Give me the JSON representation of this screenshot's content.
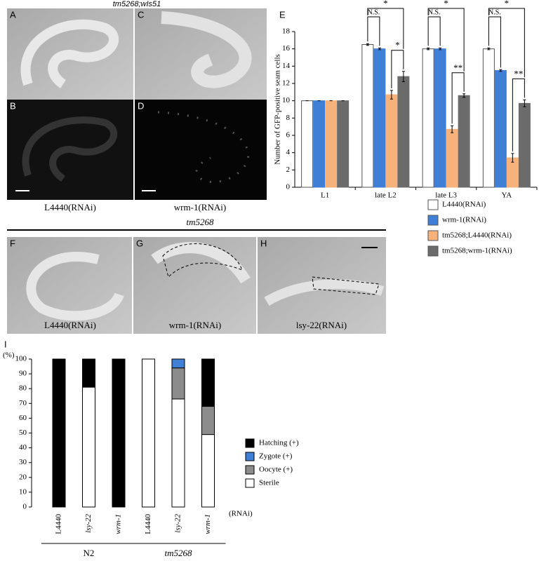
{
  "panel_labels": [
    "A",
    "B",
    "C",
    "D",
    "E",
    "F",
    "G",
    "H",
    "I"
  ],
  "headers": [
    "tm5268;wIs51",
    "tm5268"
  ],
  "captions": [
    "L4440(RNAi)",
    "wrm-1(RNAi)",
    "L4440(RNAi)",
    "wrm-1(RNAi)",
    "lsy-22(RNAi)"
  ],
  "chart_data": [
    {
      "type": "bar",
      "y_label": "Number of GFP-positive seam cells",
      "categories": [
        "L1",
        "late L2",
        "late L3",
        "YA"
      ],
      "series": [
        {
          "name": "L4440(RNAi)",
          "color": "#ffffff",
          "values": [
            10,
            16.5,
            16,
            16
          ],
          "errors": [
            0,
            0.1,
            0.1,
            0.1
          ]
        },
        {
          "name": "wrm-1(RNAi)",
          "color": "#3f7fd6",
          "values": [
            10,
            16,
            16,
            13.5
          ],
          "errors": [
            0,
            0.1,
            0.1,
            0.1
          ]
        },
        {
          "name": "tm5268;L4440(RNAi)",
          "color": "#f7b27c",
          "values": [
            10,
            10.7,
            6.7,
            3.4
          ],
          "errors": [
            0,
            0.5,
            0.4,
            0.5
          ]
        },
        {
          "name": "tm5268;wrm-1(RNAi)",
          "color": "#6b6b6b",
          "values": [
            10,
            12.8,
            10.6,
            9.7
          ],
          "errors": [
            0,
            0.6,
            0.2,
            0.4
          ]
        }
      ],
      "significance": [
        null,
        [
          "N.S.",
          "*",
          "*"
        ],
        [
          "N.S.",
          "**",
          "*"
        ],
        [
          "N.S.",
          "**",
          "*"
        ]
      ],
      "ylim": [
        0,
        18
      ],
      "yticks": [
        0,
        2,
        4,
        6,
        8,
        10,
        12,
        14,
        16,
        18
      ],
      "grid": false
    },
    {
      "type": "stacked_bar",
      "y_unit": "(%)",
      "x_unit": "(RNAi)",
      "categories": [
        "L4440",
        "lsy-22",
        "wrm-1",
        "L4440",
        "lsy-22",
        "wrm-1"
      ],
      "groups": [
        "N2",
        "tm5268"
      ],
      "series": [
        {
          "name": "Sterile",
          "color": "#ffffff",
          "values": [
            0,
            81,
            0,
            100,
            73,
            49
          ]
        },
        {
          "name": "Oocyte (+)",
          "color": "#8c8c8c",
          "values": [
            0,
            0,
            0,
            0,
            21,
            19
          ]
        },
        {
          "name": "Zygote (+)",
          "color": "#3f7fd6",
          "values": [
            0,
            0,
            0,
            0,
            6,
            0
          ]
        },
        {
          "name": "Hatching (+)",
          "color": "#000000",
          "values": [
            100,
            19,
            100,
            0,
            0,
            32
          ]
        }
      ],
      "ylim": [
        0,
        100
      ],
      "yticks": [
        0,
        10,
        20,
        30,
        40,
        50,
        60,
        70,
        80,
        90,
        100
      ],
      "grid": false
    }
  ]
}
